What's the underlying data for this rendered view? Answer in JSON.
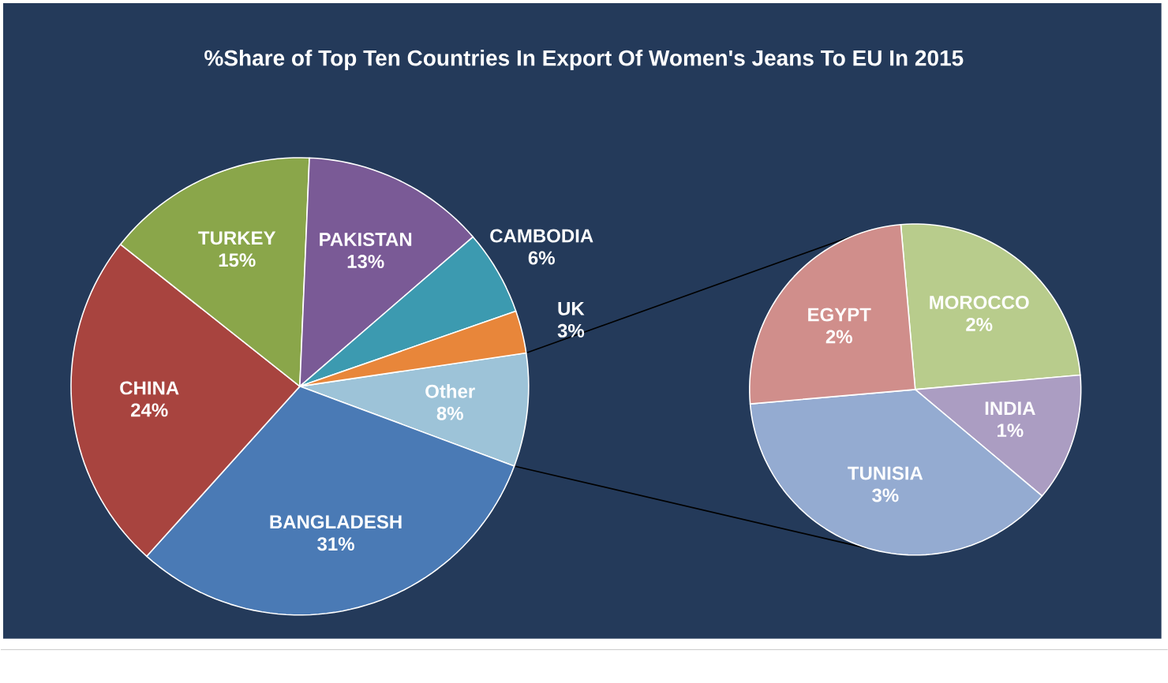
{
  "chart_data": [
    {
      "type": "pie",
      "title": "%Share of Top Ten Countries In Export Of Women's Jeans To EU In 2015",
      "categories": [
        "Other",
        "BANGLADESH",
        "CHINA",
        "TURKEY",
        "PAKISTAN",
        "CAMBODIA",
        "UK"
      ],
      "values": [
        8,
        31,
        24,
        15,
        13,
        6,
        3
      ],
      "value_labels": [
        "8%",
        "31%",
        "24%",
        "15%",
        "13%",
        "6%",
        "3%"
      ],
      "colors": [
        "#9dc3d8",
        "#4a7ab5",
        "#a8443f",
        "#8aa64a",
        "#7a5a96",
        "#3c9ab0",
        "#e8863a"
      ]
    },
    {
      "type": "pie",
      "categories": [
        "MOROCCO",
        "INDIA",
        "TUNISIA",
        "EGYPT"
      ],
      "values": [
        2,
        1,
        3,
        2
      ],
      "value_labels": [
        "2%",
        "1%",
        "3%",
        "2%"
      ],
      "colors": [
        "#b8cc8c",
        "#ab9dc2",
        "#94abd1",
        "#d08e8b"
      ]
    }
  ]
}
